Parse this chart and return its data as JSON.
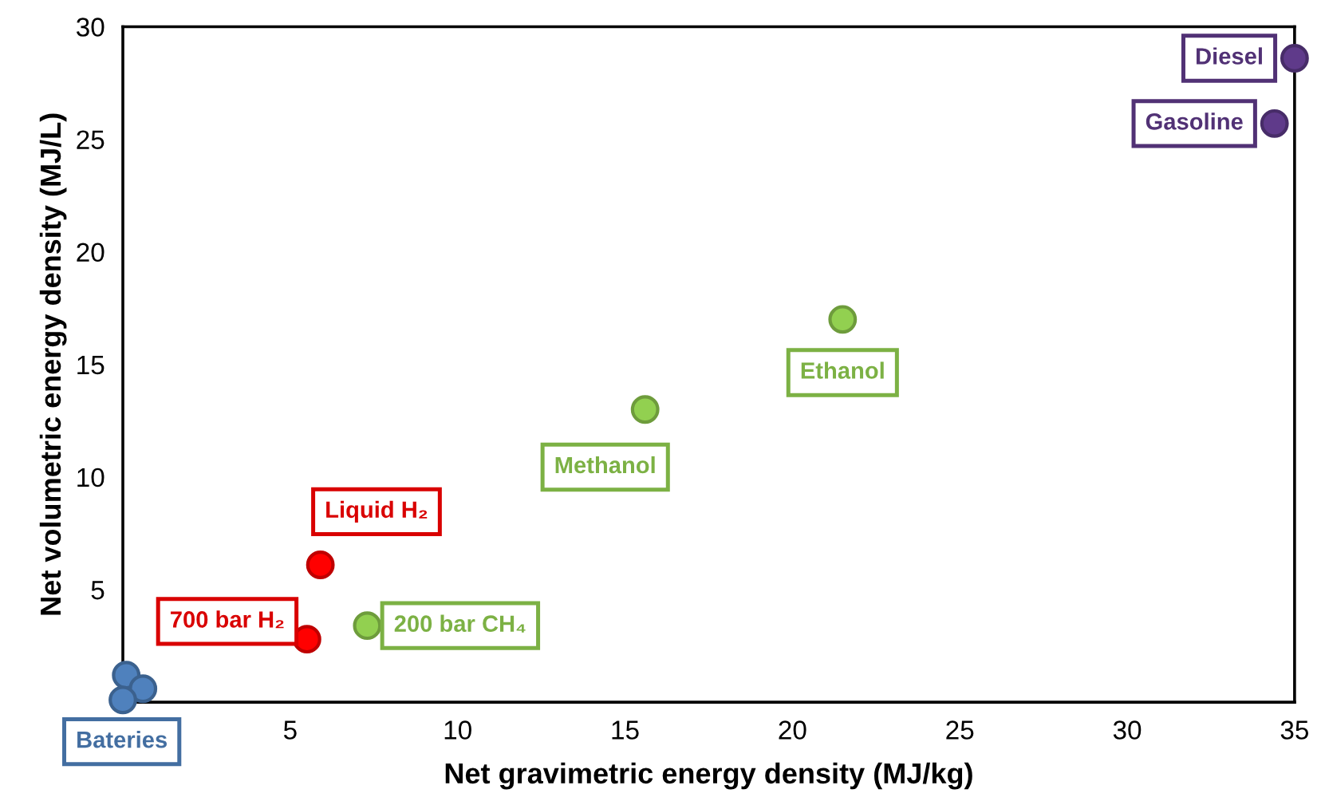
{
  "chart_data": {
    "type": "scatter",
    "xlabel": "Net gravimetric energy density (MJ/kg)",
    "ylabel": "Net volumetric energy density (MJ/L)",
    "xlim": [
      0,
      35
    ],
    "ylim": [
      0,
      30
    ],
    "xticks": [
      5,
      10,
      15,
      20,
      25,
      30,
      35
    ],
    "yticks": [
      5,
      10,
      15,
      20,
      25,
      30
    ],
    "grid": false,
    "legend": false,
    "marker": "circle",
    "series": [
      {
        "name": "Bateries",
        "color": "#4f81bd",
        "x": [
          0.1,
          0.6,
          0.0
        ],
        "values": [
          1.2,
          0.6,
          0.1
        ]
      },
      {
        "name": "700 bar H₂",
        "color": "#ff0000",
        "x": [
          5.5
        ],
        "values": [
          2.8
        ]
      },
      {
        "name": "Liquid H₂",
        "color": "#ff0000",
        "x": [
          5.9
        ],
        "values": [
          6.1
        ]
      },
      {
        "name": "200 bar CH₄",
        "color": "#92d050",
        "x": [
          7.3
        ],
        "values": [
          3.4
        ]
      },
      {
        "name": "Methanol",
        "color": "#92d050",
        "x": [
          15.6
        ],
        "values": [
          13.0
        ]
      },
      {
        "name": "Ethanol",
        "color": "#92d050",
        "x": [
          21.5
        ],
        "values": [
          17.0
        ]
      },
      {
        "name": "Gasoline",
        "color": "#5f3a8a",
        "x": [
          34.4
        ],
        "values": [
          25.7
        ]
      },
      {
        "name": "Diesel",
        "color": "#5f3a8a",
        "x": [
          35.0
        ],
        "values": [
          28.6
        ]
      }
    ]
  }
}
